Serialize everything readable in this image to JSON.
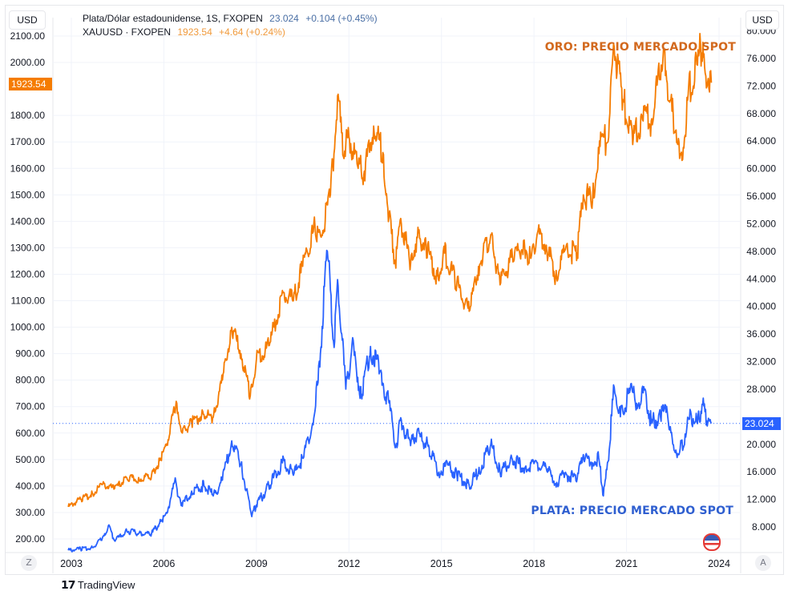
{
  "chart_data": {
    "type": "line",
    "x_ticks": [
      "2003",
      "2006",
      "2009",
      "2012",
      "2015",
      "2018",
      "2021",
      "2024"
    ],
    "left_axis": {
      "unit": "USD",
      "ticks": [
        "2100.00",
        "2000.00",
        "1800.00",
        "1700.00",
        "1600.00",
        "1500.00",
        "1400.00",
        "1300.00",
        "1200.00",
        "1100.00",
        "1000.00",
        "900.00",
        "800.00",
        "700.00",
        "600.00",
        "500.00",
        "400.00",
        "300.00",
        "200.00"
      ],
      "range": [
        170,
        2130
      ]
    },
    "right_axis": {
      "unit": "USD",
      "ticks": [
        "80.000",
        "76.000",
        "72.000",
        "68.000",
        "64.000",
        "60.000",
        "56.000",
        "52.000",
        "48.000",
        "44.000",
        "40.000",
        "36.000",
        "32.000",
        "28.000",
        "20.000",
        "16.000",
        "12.000",
        "8.000"
      ],
      "range": [
        4.0,
        80.0
      ]
    },
    "x_range": [
      2002.6,
      2024.1
    ],
    "grid": true,
    "series": [
      {
        "name": "XAUUSD · FXOPEN",
        "axis": "left",
        "color": "#f57c00",
        "points": [
          [
            2002.9,
            321
          ],
          [
            2003.3,
            350
          ],
          [
            2003.7,
            370
          ],
          [
            2004.0,
            405
          ],
          [
            2004.4,
            390
          ],
          [
            2004.8,
            430
          ],
          [
            2005.2,
            425
          ],
          [
            2005.6,
            440
          ],
          [
            2005.9,
            500
          ],
          [
            2006.1,
            560
          ],
          [
            2006.4,
            720
          ],
          [
            2006.6,
            600
          ],
          [
            2006.9,
            640
          ],
          [
            2007.3,
            670
          ],
          [
            2007.6,
            660
          ],
          [
            2007.9,
            800
          ],
          [
            2008.2,
            1000
          ],
          [
            2008.5,
            900
          ],
          [
            2008.8,
            740
          ],
          [
            2009.0,
            880
          ],
          [
            2009.4,
            930
          ],
          [
            2009.9,
            1130
          ],
          [
            2010.2,
            1100
          ],
          [
            2010.5,
            1230
          ],
          [
            2010.9,
            1380
          ],
          [
            2011.1,
            1340
          ],
          [
            2011.4,
            1500
          ],
          [
            2011.65,
            1880
          ],
          [
            2011.8,
            1650
          ],
          [
            2012.0,
            1720
          ],
          [
            2012.3,
            1600
          ],
          [
            2012.5,
            1590
          ],
          [
            2012.8,
            1760
          ],
          [
            2013.1,
            1660
          ],
          [
            2013.3,
            1420
          ],
          [
            2013.5,
            1250
          ],
          [
            2013.7,
            1390
          ],
          [
            2014.0,
            1240
          ],
          [
            2014.2,
            1340
          ],
          [
            2014.5,
            1310
          ],
          [
            2014.9,
            1180
          ],
          [
            2015.1,
            1280
          ],
          [
            2015.5,
            1170
          ],
          [
            2015.9,
            1060
          ],
          [
            2016.2,
            1230
          ],
          [
            2016.6,
            1350
          ],
          [
            2016.9,
            1160
          ],
          [
            2017.3,
            1270
          ],
          [
            2017.7,
            1300
          ],
          [
            2017.9,
            1260
          ],
          [
            2018.1,
            1350
          ],
          [
            2018.4,
            1310
          ],
          [
            2018.7,
            1190
          ],
          [
            2019.0,
            1290
          ],
          [
            2019.4,
            1280
          ],
          [
            2019.6,
            1500
          ],
          [
            2019.9,
            1480
          ],
          [
            2020.2,
            1720
          ],
          [
            2020.4,
            1700
          ],
          [
            2020.6,
            2060
          ],
          [
            2020.9,
            1860
          ],
          [
            2021.2,
            1690
          ],
          [
            2021.5,
            1800
          ],
          [
            2021.8,
            1780
          ],
          [
            2022.2,
            2050
          ],
          [
            2022.4,
            1850
          ],
          [
            2022.7,
            1700
          ],
          [
            2022.8,
            1630
          ],
          [
            2023.0,
            1880
          ],
          [
            2023.3,
            1990
          ],
          [
            2023.4,
            2070
          ],
          [
            2023.55,
            1960
          ],
          [
            2023.75,
            1923.54
          ]
        ]
      },
      {
        "name": "Plata/Dólar estadounidense, 1S, FXOPEN",
        "axis": "right",
        "color": "#2962ff",
        "points": [
          [
            2002.9,
            4.6
          ],
          [
            2003.3,
            4.8
          ],
          [
            2003.7,
            5.0
          ],
          [
            2004.0,
            6.3
          ],
          [
            2004.2,
            8.2
          ],
          [
            2004.4,
            6.0
          ],
          [
            2004.8,
            7.4
          ],
          [
            2005.2,
            7.1
          ],
          [
            2005.6,
            7.0
          ],
          [
            2005.9,
            8.8
          ],
          [
            2006.1,
            10.0
          ],
          [
            2006.35,
            14.6
          ],
          [
            2006.6,
            11.0
          ],
          [
            2006.9,
            13.2
          ],
          [
            2007.3,
            14.0
          ],
          [
            2007.6,
            12.5
          ],
          [
            2007.9,
            14.8
          ],
          [
            2008.2,
            20.5
          ],
          [
            2008.5,
            17.0
          ],
          [
            2008.85,
            9.5
          ],
          [
            2009.0,
            11.2
          ],
          [
            2009.4,
            14.0
          ],
          [
            2009.9,
            17.6
          ],
          [
            2010.2,
            15.5
          ],
          [
            2010.5,
            18.0
          ],
          [
            2010.8,
            22.5
          ],
          [
            2011.0,
            29.0
          ],
          [
            2011.3,
            48.0
          ],
          [
            2011.5,
            35.0
          ],
          [
            2011.65,
            43.0
          ],
          [
            2011.9,
            28.0
          ],
          [
            2012.1,
            34.5
          ],
          [
            2012.4,
            27.0
          ],
          [
            2012.7,
            34.2
          ],
          [
            2013.0,
            30.5
          ],
          [
            2013.3,
            26.0
          ],
          [
            2013.5,
            19.5
          ],
          [
            2013.7,
            23.5
          ],
          [
            2014.0,
            19.8
          ],
          [
            2014.2,
            21.5
          ],
          [
            2014.6,
            19.5
          ],
          [
            2014.9,
            15.8
          ],
          [
            2015.2,
            17.0
          ],
          [
            2015.5,
            15.5
          ],
          [
            2015.9,
            14.0
          ],
          [
            2016.2,
            16.0
          ],
          [
            2016.6,
            20.0
          ],
          [
            2016.9,
            16.0
          ],
          [
            2017.3,
            17.8
          ],
          [
            2017.7,
            16.5
          ],
          [
            2018.0,
            17.2
          ],
          [
            2018.4,
            16.5
          ],
          [
            2018.7,
            14.3
          ],
          [
            2019.0,
            15.6
          ],
          [
            2019.4,
            15.0
          ],
          [
            2019.6,
            18.5
          ],
          [
            2019.9,
            17.3
          ],
          [
            2020.1,
            18.0
          ],
          [
            2020.25,
            12.5
          ],
          [
            2020.4,
            17.5
          ],
          [
            2020.6,
            28.3
          ],
          [
            2020.8,
            24.0
          ],
          [
            2021.1,
            27.5
          ],
          [
            2021.4,
            26.0
          ],
          [
            2021.6,
            28.0
          ],
          [
            2021.8,
            23.0
          ],
          [
            2022.1,
            24.0
          ],
          [
            2022.3,
            25.5
          ],
          [
            2022.5,
            20.0
          ],
          [
            2022.7,
            18.5
          ],
          [
            2022.9,
            21.5
          ],
          [
            2023.1,
            24.2
          ],
          [
            2023.3,
            23.0
          ],
          [
            2023.45,
            25.8
          ],
          [
            2023.6,
            23.4
          ],
          [
            2023.75,
            23.024
          ]
        ]
      }
    ],
    "legend_placement": "top-left"
  },
  "legend": {
    "silver": {
      "symbol": "Plata/Dólar estadounidense, 1S, FXOPEN",
      "price": "23.024",
      "change": "+0.104 (+0.45%)"
    },
    "gold": {
      "symbol": "XAUUSD · FXOPEN",
      "price": "1923.54",
      "change": "+4.64 (+0.24%)"
    }
  },
  "annotations": {
    "gold": "ORO: PRECIO MERCADO SPOT",
    "silver": "PLATA: PRECIO MERCADO SPOT"
  },
  "price_tags": {
    "gold": "1923.54",
    "silver": "23.024"
  },
  "currency_left": "USD",
  "currency_right": "USD",
  "buttons": {
    "zoom": "Z",
    "auto": "A"
  },
  "branding": "TradingView",
  "colors": {
    "gold": "#f57c00",
    "silver": "#2962ff",
    "gold_text": "#d2691e",
    "silver_text": "#2f5fd0",
    "grid": "#f0f3fa"
  }
}
